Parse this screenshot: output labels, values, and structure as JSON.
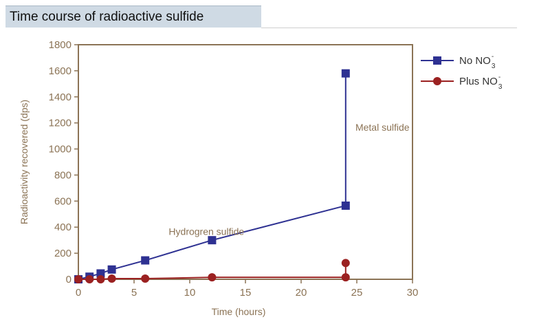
{
  "header": {
    "title": "Time course of radioactive sulfide"
  },
  "colors": {
    "series_no": "#2e3192",
    "series_plus": "#9b2121",
    "axis": "#8b7355",
    "title_bg": "#cfdae4"
  },
  "chart_data": {
    "type": "line",
    "title": "Time course of radioactive sulfide",
    "xlabel": "Time (hours)",
    "ylabel": "Radioactivity recovered (dps)",
    "xlim": [
      0,
      30
    ],
    "ylim": [
      0,
      1800
    ],
    "xticks": [
      0,
      5,
      10,
      15,
      20,
      25,
      30
    ],
    "yticks": [
      0,
      200,
      400,
      600,
      800,
      1000,
      1200,
      1400,
      1600,
      1800
    ],
    "grid": false,
    "legend_position": "right",
    "series": [
      {
        "name": "No NO3-",
        "legend_main": "No NO",
        "legend_sub": "3",
        "legend_sup": "-",
        "marker": "square",
        "color": "#2e3192",
        "points": [
          [
            0,
            0
          ],
          [
            1,
            20
          ],
          [
            2,
            45
          ],
          [
            3,
            75
          ],
          [
            6,
            145
          ],
          [
            12,
            300
          ],
          [
            24,
            565
          ]
        ],
        "extra_points": [
          [
            24,
            1580
          ]
        ]
      },
      {
        "name": "Plus NO3-",
        "legend_main": "Plus NO",
        "legend_sub": "3",
        "legend_sup": "-",
        "marker": "circle",
        "color": "#9b2121",
        "points": [
          [
            0,
            0
          ],
          [
            1,
            0
          ],
          [
            2,
            0
          ],
          [
            3,
            5
          ],
          [
            6,
            5
          ],
          [
            12,
            15
          ],
          [
            24,
            15
          ]
        ],
        "extra_points": [
          [
            24,
            125
          ]
        ]
      }
    ],
    "annotations": [
      {
        "text": "Hydrogren sulfide",
        "x": 11.5,
        "y": 340
      },
      {
        "text": "Metal sulfide",
        "x": 27.3,
        "y": 1140
      }
    ]
  }
}
